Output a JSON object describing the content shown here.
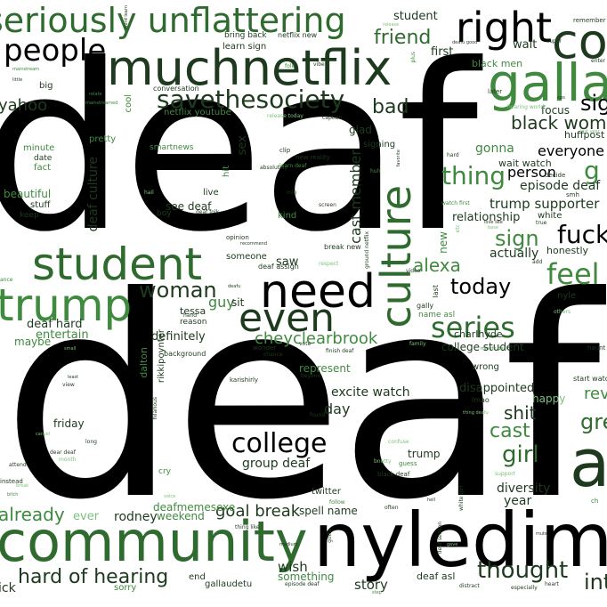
{
  "palette": {
    "black": "#000000",
    "dark_green": "#1e3a1e",
    "green": "#3f8a3f",
    "light_green": "#7cc07c",
    "pale_green": "#a9d4a9"
  },
  "words": {
    "deaf_1": "deaf",
    "deaf_2": "deaf",
    "nyledim": "nyledim",
    "community": "community",
    "muchnetflix": "muchnetflix",
    "student": "student",
    "need": "need",
    "even": "even",
    "culture": "culture",
    "trump": "trump",
    "seriously_unflattering": "seriously unflattering",
    "right": "right",
    "people": "people",
    "savethesociety": "savethesociety",
    "co": "co",
    "galla": "galla",
    "a": "a",
    "college": "college",
    "series": "series",
    "feel": "feel",
    "woman": "woman",
    "today": "today",
    "alexa": "alexa",
    "fuck": "fuck",
    "sign_1": "sign",
    "sign_2": "sign",
    "thing": "thing",
    "friend": "friend",
    "black_woman": "black woman",
    "bad": "bad",
    "hard_of_hearing": "hard of hearing",
    "thought": "thought",
    "girl": "girl",
    "cast": "cast",
    "shit": "shit",
    "cheyclearbrook": "cheyclearbrook",
    "goal_break": "goal break",
    "already": "already",
    "yahoo": "yahoo",
    "trump_supporter": "trump supporter",
    "episode_deaf": "episode deaf",
    "everyone": "everyone",
    "person": "person",
    "cast_member": "cast member",
    "deaf_culture": "deaf culture",
    "relationship": "relationship",
    "actually": "actually",
    "gonna": "gonna",
    "wait_watch": "wait watch",
    "excite_watch": "excite watch",
    "disappointed": "disappointed",
    "day": "day",
    "diversity": "diversity",
    "year": "year",
    "group_deaf": "group deaf",
    "wish": "wish",
    "story": "story",
    "something": "something",
    "spell_name": "spell name",
    "rodney": "rodney",
    "weekend": "weekend",
    "deafmemesexe": "deafmemesexe",
    "ever": "ever",
    "definitely": "definitely",
    "guy": "guy",
    "sit": "sit",
    "saw": "saw",
    "deaf_hard": "deaf hard",
    "entertain": "entertain",
    "maybe": "maybe",
    "college_student": "college student",
    "represent": "represent",
    "trump_small": "trump",
    "friday": "friday",
    "wrong": "wrong",
    "happy": "happy",
    "rikkipoynter": "rikkipoynter",
    "dalton": "dalton",
    "tessa": "tessa",
    "charlhyde": "charlhyde",
    "name_asl": "name asl",
    "first": "first",
    "wait": "wait",
    "student_small": "student",
    "focus": "focus",
    "huffpost": "huffpost",
    "glad": "glad",
    "see_deaf": "see deaf",
    "beautiful": "beautiful",
    "sex": "sex",
    "black_men": "black men",
    "netflix_youtube": "netflix youtube",
    "learn_sign": "learn sign",
    "minute": "minute",
    "fact": "fact",
    "live": "live",
    "stuff": "stuff",
    "keep": "keep",
    "pretty": "pretty",
    "big": "big",
    "smartnews": "smartnews",
    "cool": "cool",
    "someone": "someone",
    "new": "new",
    "honestly": "honestly",
    "twitter": "twitter",
    "deaf_asl": "deaf asl",
    "gallaudetu": "gallaudetu",
    "end": "end",
    "sorry": "sorry",
    "ick": "ick",
    "signing": "signing",
    "nyle": "nyle",
    "reason": "reason",
    "background": "background",
    "conversation": "conversation",
    "bring_back": "bring back",
    "netflix_new": "netflix new",
    "white": "white",
    "date": "date",
    "boy": "boy",
    "kind": "kind",
    "hit": "hit",
    "gre": "gre",
    "revi": "revi",
    "int": "int",
    "g": "g",
    "lmao": "lmao",
    "later": "later",
    "hearing_world": "hearing world",
    "decide": "decide",
    "smh": "smh",
    "clip": "clip",
    "absolutely": "absolutely",
    "learn_deaf": "learn deaf",
    "new_reality": "new reality",
    "screen": "screen",
    "min": "min",
    "deaf_folk": "deaf folk",
    "opinion": "opinion",
    "recommend": "recommend",
    "break_new": "break new",
    "deaf_assign": "deaf assign",
    "respect": "respect",
    "video": "video",
    "hand": "hand",
    "last": "last",
    "gally": "gally",
    "others": "others",
    "vote": "vote",
    "wonder": "wonder",
    "chance": "chance",
    "finish_deaf": "finish deaf",
    "beyond": "beyond",
    "karishirly": "karishirly",
    "found": "found",
    "confuse": "confuse",
    "guess": "guess",
    "black_deaf": "black deaf",
    "support": "support",
    "follow": "follow",
    "often": "often",
    "deaf_season": "deaf season",
    "white_girl": "white girl",
    "gotta": "gotta",
    "distract": "distract",
    "especially": "especially",
    "heart": "heart",
    "thing_like": "thing like",
    "medium": "medium",
    "episode_deaf_small": "episode deaf",
    "step": "step",
    "hilarious": "hilarious",
    "long": "long",
    "view": "view",
    "least": "least",
    "attend": "attend",
    "cancel": "cancel",
    "dear_deaf": "dear deaf",
    "month": "month",
    "cry": "cry",
    "voice": "voice",
    "instead": "instead",
    "mainstream": "mainstream",
    "little": "little",
    "relate": "relate",
    "mainstreamed": "mainstreamed",
    "word_learn": "word learn",
    "folk": "folk",
    "vibe": "vibe",
    "plus": "plus",
    "deafu_good": "deafu good",
    "remember": "remember",
    "super": "super",
    "release": "release",
    "release_today": "release today",
    "caption": "caption",
    "hard": "hard",
    "huh": "huh",
    "hail": "hail",
    "ground_netflix": "ground netflix",
    "add": "add",
    "start_watch": "start watch",
    "haunt": "haunt",
    "thing_deafu": "thing deafu",
    "minute_deaf": "minute deaf",
    "watch_first": "watch first",
    "etc": "etc",
    "love_see": "love see",
    "base": "base",
    "true": "true",
    "ance": "ance",
    "bitch": "bitch",
    "deafu": "deafu",
    "enter": "enter",
    "eps": "eps",
    "last_year": "last year",
    "favorite": "favorite",
    "ch": "ch",
    "family": "family",
    "small": "small",
    "bnotty": "bnotty",
    "hell": "hell",
    "mute": "mute",
    "gave": "gave",
    "break": "break"
  }
}
